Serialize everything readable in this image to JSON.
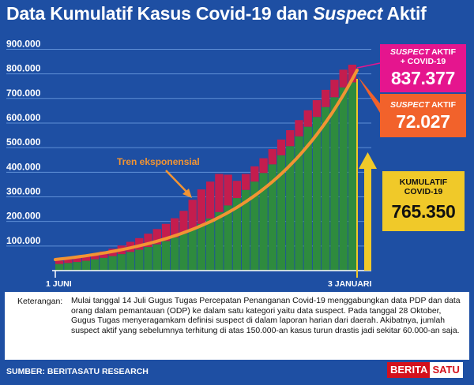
{
  "header": {
    "title_part1": "Data Kumulatif Kasus Covid-19 dan ",
    "title_italic": "Suspect",
    "title_part2": " Aktif"
  },
  "callouts": {
    "total": {
      "label_italic": "SUSPECT",
      "label_rest": " AKTIF",
      "label_line2": "+ COVID-19",
      "value": "837.377"
    },
    "suspect": {
      "label_italic": "SUSPECT",
      "label_rest": " AKTIF",
      "value": "72.027"
    },
    "cumulative": {
      "label_line1": "KUMULATIF",
      "label_line2": "COVID-19",
      "value": "765.350"
    }
  },
  "chart_data": {
    "type": "bar",
    "stacked": true,
    "x_tick_labels": [
      "1 JUNI",
      "3 JANUARI"
    ],
    "y_tick_labels": [
      "100.000",
      "200.000",
      "300.000",
      "400.000",
      "500.000",
      "600.000",
      "700.000",
      "800.000",
      "900.000"
    ],
    "ylim": [
      0,
      940000
    ],
    "grid": true,
    "series": [
      {
        "name": "Kumulatif Covid-19",
        "color": "#2e8b3e",
        "values": [
          27000,
          31000,
          35000,
          40000,
          46000,
          52000,
          59000,
          67000,
          76000,
          85000,
          96000,
          107000,
          120000,
          135000,
          151000,
          170000,
          190000,
          212000,
          238000,
          265000,
          295000,
          328000,
          362000,
          397000,
          432000,
          469000,
          506000,
          546000,
          585000,
          625000,
          665000,
          705000,
          745000,
          765350
        ]
      },
      {
        "name": "Suspect Aktif",
        "color": "#c41d4e",
        "values": [
          13000,
          15000,
          17000,
          19000,
          22000,
          26000,
          30000,
          35000,
          41000,
          47000,
          54000,
          62000,
          70000,
          78000,
          92000,
          118000,
          140000,
          150000,
          155000,
          125000,
          70000,
          65000,
          62000,
          60000,
          62000,
          64000,
          65000,
          66000,
          67000,
          68000,
          70000,
          71000,
          72000,
          72027
        ]
      }
    ],
    "annotations": [
      "Tren eksponensial"
    ],
    "trend_line": {
      "color": "#f29433",
      "start": 45000,
      "end": 815000
    }
  },
  "note": {
    "label": "Keterangan:",
    "text": "Mulai tanggal 14 Juli Gugus Tugas Percepatan Penanganan Covid-19 menggabungkan data PDP dan data orang dalam pemantauan (ODP) ke dalam satu kategori yaitu data suspect. Pada tanggal 28 Oktober, Gugus Tugas menyeragamkam definisi suspect di dalam  laporan harian dari daerah. Akibatnya, jumlah suspect aktif yang sebelumnya terhitung di atas 150.000-an kasus turun drastis jadi sekitar 60.000-an saja."
  },
  "source": "SUMBER: BERITASATU RESEARCH",
  "brand": {
    "part1": "BERITA",
    "part2": "SATU"
  }
}
